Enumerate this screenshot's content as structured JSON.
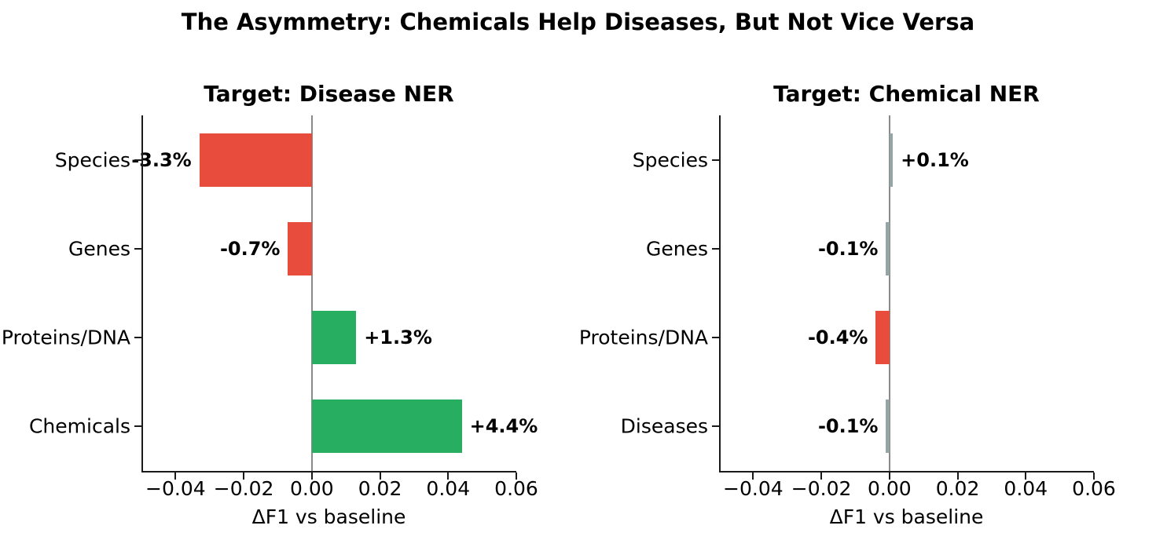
{
  "title": "The Asymmetry: Chemicals Help Diseases, But Not Vice Versa",
  "palette": {
    "gain": "#27ae60",
    "loss": "#e74c3c",
    "neutral": "#95a5a6"
  },
  "axis_style": {
    "spine_color": "#1a1a1a",
    "zero_line_color": "#8a8a8a",
    "text_color": "#000000"
  },
  "chart_data": [
    {
      "type": "bar",
      "orientation": "horizontal",
      "title": "Target: Disease NER",
      "categories": [
        "Species",
        "Genes",
        "Proteins/DNA",
        "Chemicals"
      ],
      "values": [
        -0.033,
        -0.007,
        0.013,
        0.044
      ],
      "bar_labels": [
        "-3.3%",
        "-0.7%",
        "+1.3%",
        "+4.4%"
      ],
      "bar_color_keys": [
        "loss",
        "loss",
        "gain",
        "gain"
      ],
      "xlabel": "ΔF1 vs baseline",
      "xlim": [
        -0.05,
        0.06
      ],
      "xticks": [
        -0.04,
        -0.02,
        0,
        0.02,
        0.04,
        0.06
      ],
      "xtick_labels": [
        "−0.04",
        "−0.02",
        "0.00",
        "0.02",
        "0.04",
        "0.06"
      ],
      "grid": false,
      "legend": null
    },
    {
      "type": "bar",
      "orientation": "horizontal",
      "title": "Target: Chemical NER",
      "categories": [
        "Species",
        "Genes",
        "Proteins/DNA",
        "Diseases"
      ],
      "values": [
        0.001,
        -0.001,
        -0.004,
        -0.001
      ],
      "bar_labels": [
        "+0.1%",
        "-0.1%",
        "-0.4%",
        "-0.1%"
      ],
      "bar_color_keys": [
        "neutral",
        "neutral",
        "loss",
        "neutral"
      ],
      "xlabel": "ΔF1 vs baseline",
      "xlim": [
        -0.05,
        0.06
      ],
      "xticks": [
        -0.04,
        -0.02,
        0,
        0.02,
        0.04,
        0.06
      ],
      "xtick_labels": [
        "−0.04",
        "−0.02",
        "0.00",
        "0.02",
        "0.04",
        "0.06"
      ],
      "grid": false,
      "legend": null
    }
  ]
}
